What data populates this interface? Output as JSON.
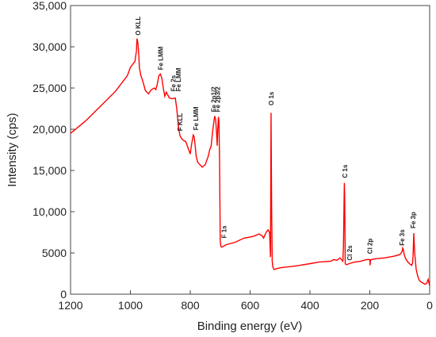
{
  "chart_data": {
    "type": "line",
    "title": "",
    "xlabel": "Binding energy (eV)",
    "ylabel": "Intensity (cps)",
    "xlim": [
      1200,
      0
    ],
    "ylim": [
      0,
      35000
    ],
    "x_reversed": true,
    "x_ticks": [
      1200,
      1000,
      800,
      600,
      400,
      200,
      0
    ],
    "x_tick_labels": [
      "1200",
      "1000",
      "800",
      "600",
      "400",
      "200",
      "0"
    ],
    "y_ticks": [
      0,
      5000,
      10000,
      15000,
      20000,
      25000,
      30000,
      35000
    ],
    "y_tick_labels": [
      "0",
      "5000",
      "10,000",
      "15,000",
      "20,000",
      "25,000",
      "30,000",
      "35,000"
    ],
    "grid": false,
    "legend": "none",
    "series": [
      {
        "color": "#ff0000",
        "x": [
          1200,
          1150,
          1100,
          1050,
          1010,
          1000,
          990,
          985,
          980,
          978,
          975,
          972,
          970,
          965,
          960,
          950,
          940,
          930,
          920,
          915,
          910,
          905,
          900,
          895,
          890,
          885,
          880,
          870,
          860,
          850,
          845,
          840,
          835,
          830,
          825,
          815,
          800,
          795,
          790,
          787,
          784,
          780,
          775,
          770,
          760,
          750,
          740,
          735,
          730,
          725,
          720,
          718,
          715,
          712,
          710,
          708,
          706,
          704,
          702,
          700,
          698,
          695,
          690,
          680,
          650,
          620,
          590,
          570,
          560,
          555,
          550,
          545,
          540,
          535,
          532,
          530,
          528,
          526,
          524,
          520,
          500,
          450,
          400,
          370,
          350,
          330,
          320,
          310,
          300,
          295,
          290,
          288,
          286,
          285,
          284,
          283,
          282,
          280,
          275,
          270,
          250,
          230,
          210,
          200,
          199,
          198,
          195,
          180,
          150,
          120,
          100,
          95,
          92,
          90,
          88,
          85,
          80,
          75,
          70,
          65,
          62,
          60,
          57,
          55,
          53,
          52,
          50,
          45,
          40,
          35,
          30,
          25,
          20,
          15,
          10,
          5,
          0
        ],
        "y": [
          19500,
          21000,
          22800,
          24600,
          26500,
          27500,
          28000,
          28200,
          29500,
          31000,
          30500,
          29000,
          27500,
          26500,
          26000,
          24700,
          24300,
          24800,
          25000,
          24800,
          25500,
          26500,
          26700,
          26200,
          25000,
          24000,
          24500,
          23800,
          23700,
          23800,
          22500,
          20500,
          19300,
          18900,
          18700,
          18500,
          17000,
          18300,
          19300,
          19100,
          18200,
          16700,
          16000,
          15800,
          15400,
          15700,
          16700,
          17500,
          18000,
          19800,
          21200,
          21600,
          21100,
          19500,
          18000,
          20000,
          21500,
          21000,
          16000,
          6500,
          5800,
          5700,
          5800,
          6000,
          6300,
          6800,
          7000,
          7300,
          7100,
          6800,
          7200,
          7600,
          7800,
          7500,
          4500,
          22000,
          10000,
          4000,
          3300,
          3000,
          3200,
          3400,
          3700,
          3900,
          3950,
          4000,
          4200,
          4100,
          4400,
          4200,
          4000,
          6000,
          11000,
          13500,
          12000,
          7500,
          3700,
          3600,
          3600,
          3700,
          3900,
          4000,
          4200,
          4200,
          3500,
          4100,
          4200,
          4300,
          4400,
          4600,
          4800,
          5000,
          5200,
          5600,
          5400,
          4800,
          4300,
          4000,
          3800,
          3600,
          3600,
          3500,
          3800,
          5000,
          7400,
          6500,
          5000,
          3000,
          2200,
          1700,
          1500,
          1400,
          1300,
          1200,
          1300,
          1800,
          1000
        ]
      }
    ],
    "annotations": [
      {
        "text": "O KLL",
        "x": 975,
        "y": 31000
      },
      {
        "text": "Fe LMM",
        "x": 900,
        "y": 26800
      },
      {
        "text": "Fe 2s",
        "x": 857,
        "y": 24200
      },
      {
        "text": "Fe LMM",
        "x": 840,
        "y": 24200
      },
      {
        "text": "F KLL",
        "x": 835,
        "y": 19400
      },
      {
        "text": "Fe LMM",
        "x": 782,
        "y": 19500
      },
      {
        "text": "Fe 2p1/2",
        "x": 722,
        "y": 21700
      },
      {
        "text": "Fe 2p3/2",
        "x": 708,
        "y": 21700
      },
      {
        "text": "F 1s",
        "x": 688,
        "y": 6400
      },
      {
        "text": "O 1s",
        "x": 530,
        "y": 22500
      },
      {
        "text": "C 1s",
        "x": 284,
        "y": 13700
      },
      {
        "text": "Cl 2s",
        "x": 268,
        "y": 3700
      },
      {
        "text": "Cl 2p",
        "x": 200,
        "y": 4500
      },
      {
        "text": "Fe 3s",
        "x": 93,
        "y": 5500
      },
      {
        "text": "Fe 3p",
        "x": 55,
        "y": 7600
      }
    ]
  }
}
